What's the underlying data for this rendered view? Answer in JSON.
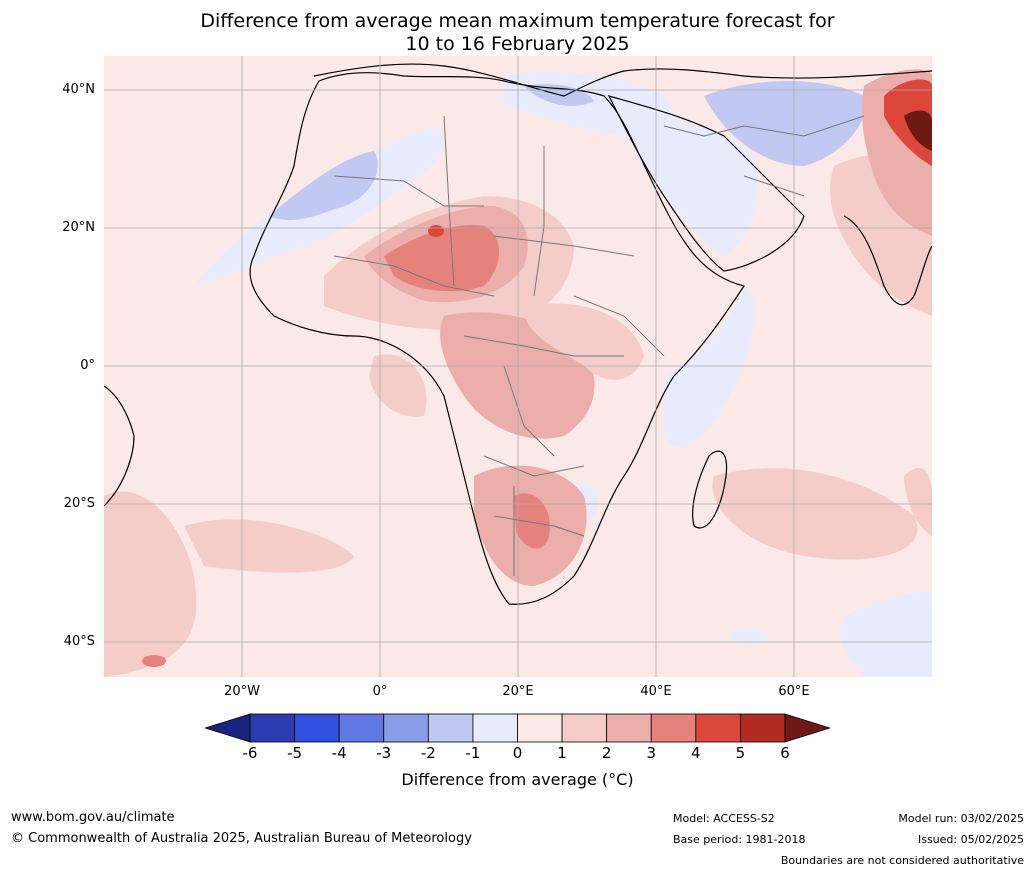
{
  "title_line1": "Difference from average mean maximum temperature forecast for",
  "title_line2": "10 to 16 February 2025",
  "lat_labels": [
    "40°N",
    "20°N",
    "0°",
    "20°S",
    "40°S"
  ],
  "lon_labels": [
    "20°W",
    "0°",
    "20°E",
    "40°E",
    "60°E"
  ],
  "colorbar": {
    "ticks": [
      "-6",
      "-5",
      "-4",
      "-3",
      "-2",
      "-1",
      "0",
      "1",
      "2",
      "3",
      "4",
      "5",
      "6"
    ],
    "colors": [
      "#1a237e",
      "#2a3caf",
      "#3050e0",
      "#5f78e3",
      "#8c9ce8",
      "#c1c9f3",
      "#e8ebfb",
      "#fbe9e7",
      "#f4cdca",
      "#ecaeaa",
      "#e6827c",
      "#dc473c",
      "#b02a22",
      "#6e1a14"
    ],
    "label": "Difference from average (°C)"
  },
  "footer": {
    "website": "www.bom.gov.au/climate",
    "copyright": "© Commonwealth of Australia 2025, Australian Bureau of Meteorology",
    "model": "Model: ACCESS-S2",
    "base_period": "Base period: 1981-2018",
    "model_run": "Model run: 03/02/2025",
    "issued": "Issued: 05/02/2025",
    "disclaimer": "Boundaries are not considered authoritative"
  }
}
